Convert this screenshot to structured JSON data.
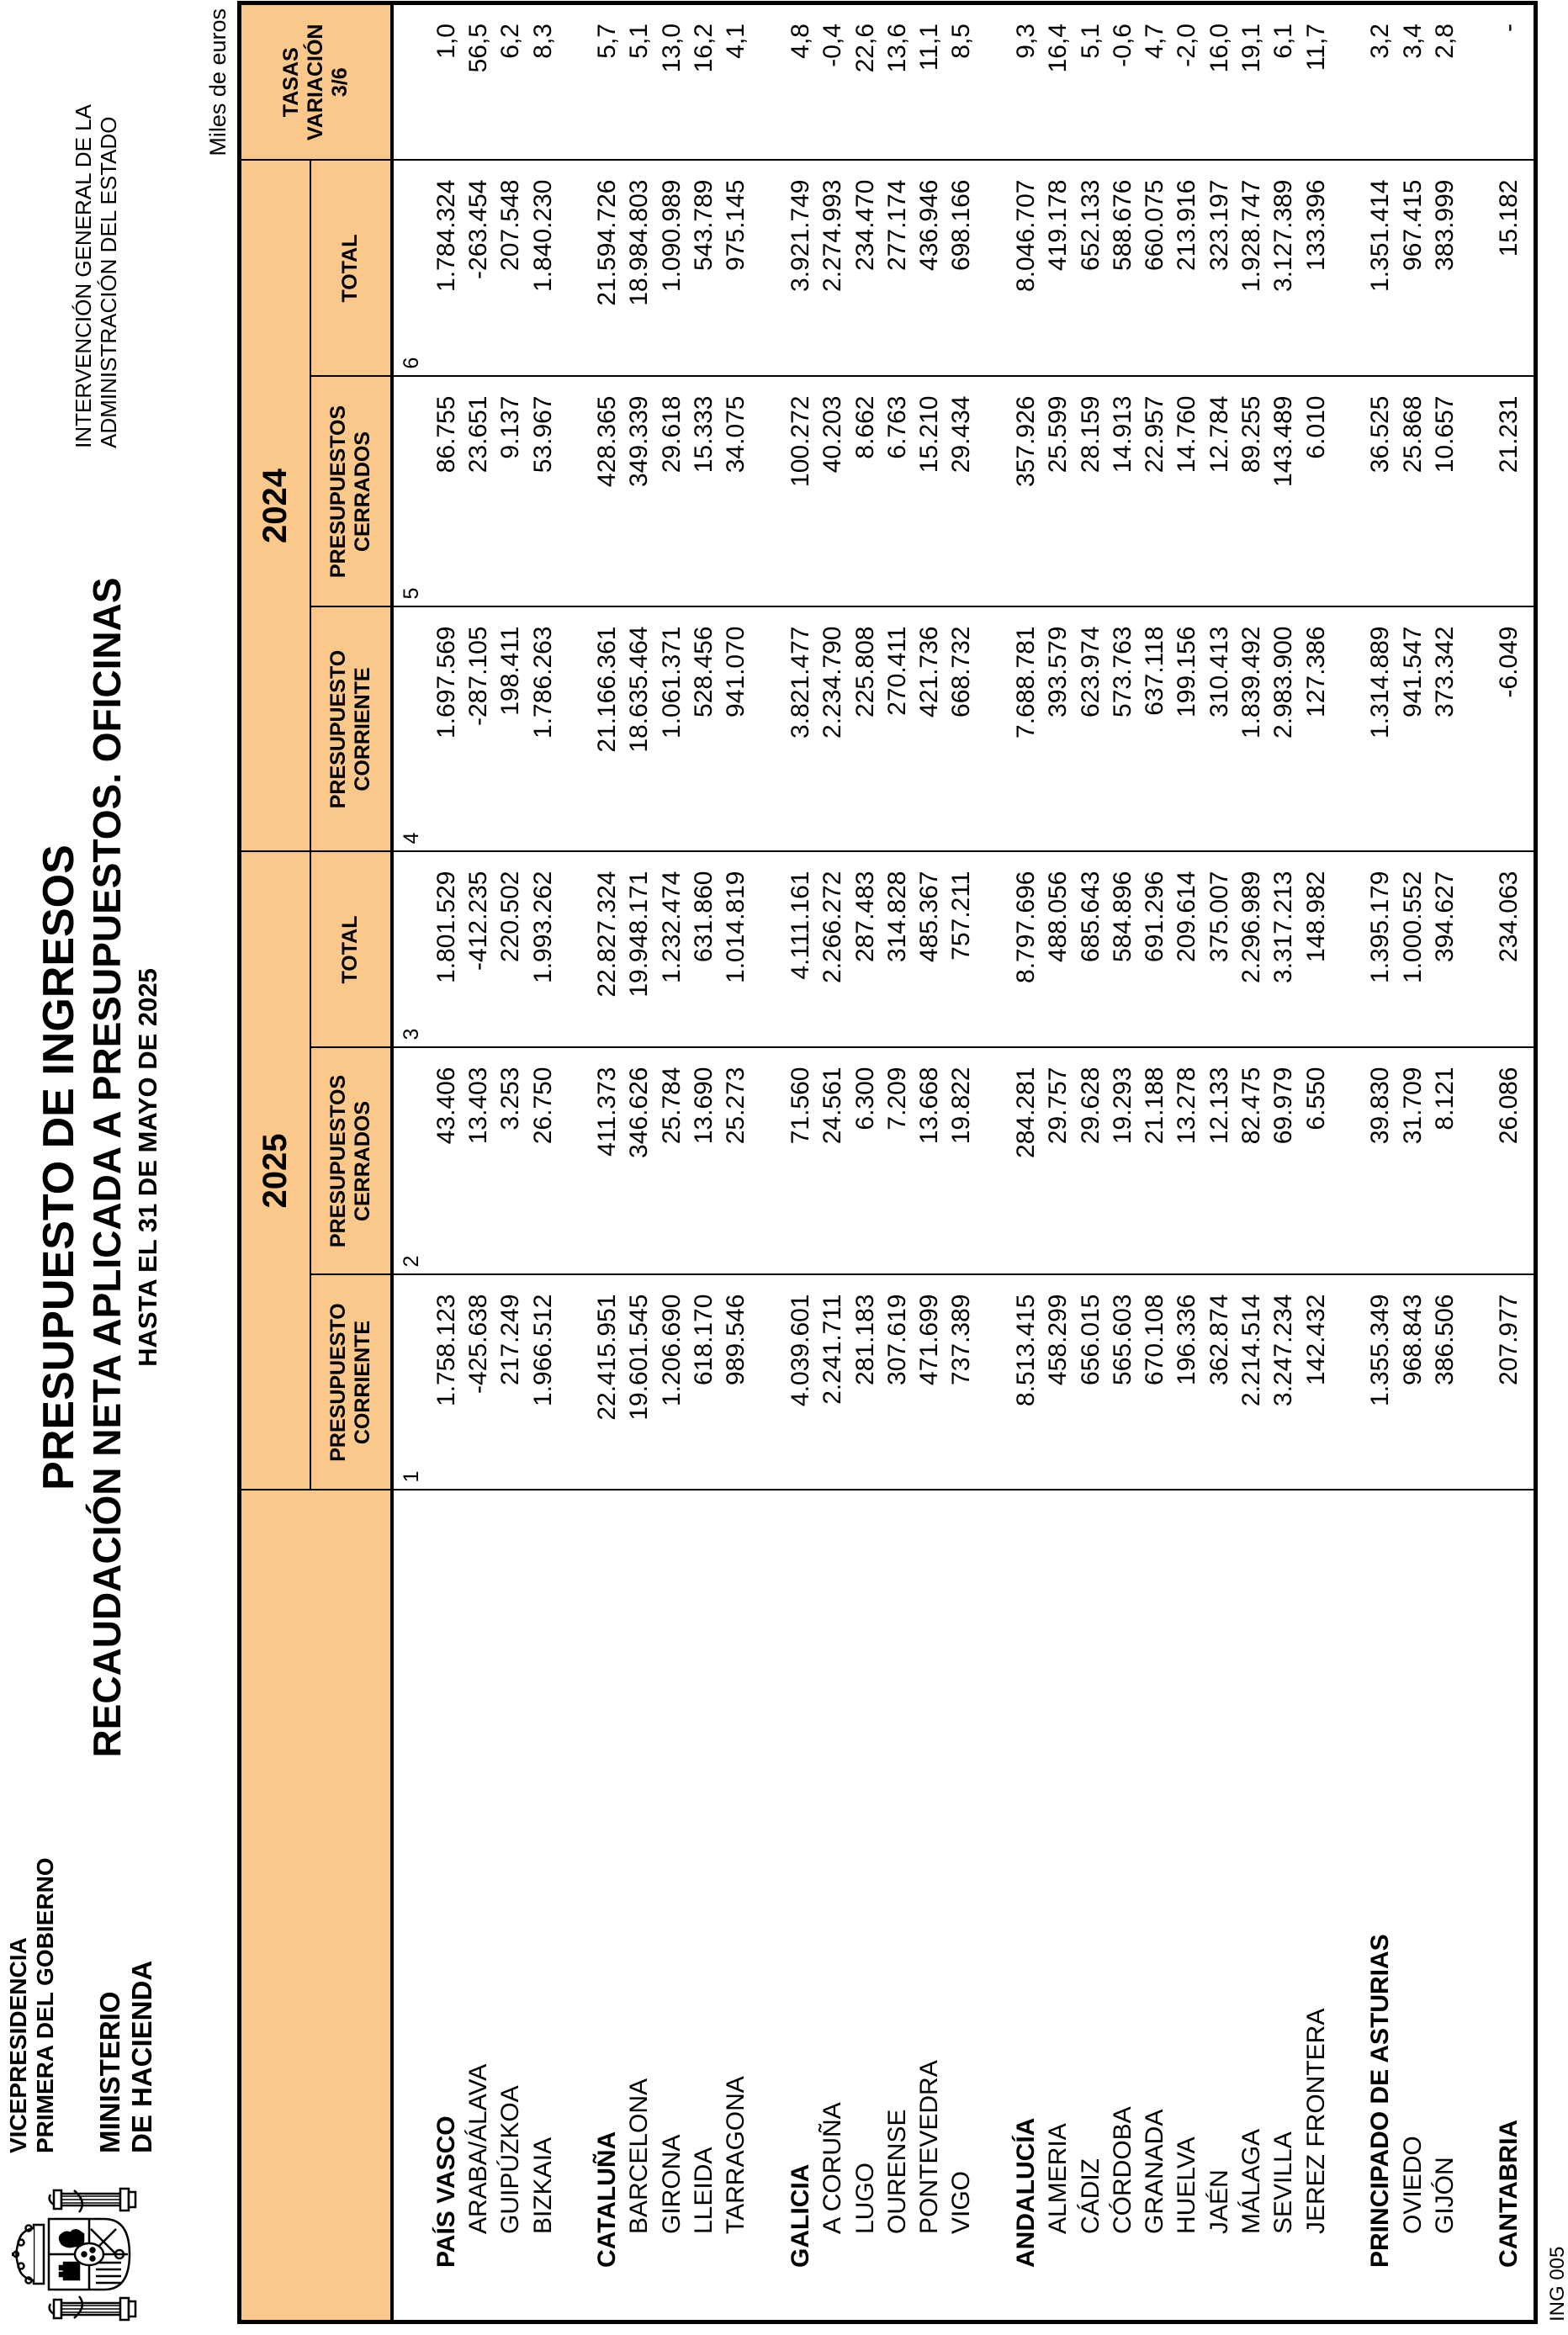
{
  "header": {
    "form_code": "ING 005",
    "department": {
      "line1": "VICEPRESIDENCIA",
      "line2": "PRIMERA DEL GOBIERNO",
      "line3": "MINISTERIO",
      "line4": "DE HACIENDA"
    },
    "emblem": "spanish-coat-of-arms",
    "title_line1": "PRESUPUESTO DE INGRESOS",
    "title_line2": "RECAUDACIÓN NETA APLICADA A PRESUPUESTOS. OFICINAS",
    "title_line3": "HASTA EL 31 DE MAYO DE 2025",
    "organization_line1": "INTERVENCIÓN GENERAL DE LA",
    "organization_line2": "ADMINISTRACIÓN DEL ESTADO",
    "units_note": "Miles de euros"
  },
  "colors": {
    "header_fill": "#FBC88C",
    "border": "#000000",
    "text": "#000000",
    "page_background": "#FFFFFF"
  },
  "table": {
    "years": {
      "y2025": "2025",
      "y2024": "2024"
    },
    "headers": {
      "corriente_l1": "PRESUPUESTO",
      "corriente_l2": "CORRIENTE",
      "cerrados_l1": "PRESUPUESTOS",
      "cerrados_l2": "CERRADOS",
      "total": "TOTAL",
      "tasas_l1": "TASAS",
      "tasas_l2": "VARIACIÓN",
      "tasas_l3": "3/6"
    },
    "column_numbers": [
      "1",
      "2",
      "3",
      "4",
      "5",
      "6"
    ],
    "rows": [
      {
        "type": "region",
        "label": "PAÍS VASCO",
        "values": [
          "1.758.123",
          "43.406",
          "1.801.529",
          "1.697.569",
          "86.755",
          "1.784.324",
          "1,0"
        ]
      },
      {
        "type": "office",
        "label": "ARABA/ÁLAVA",
        "values": [
          "-425.638",
          "13.403",
          "-412.235",
          "-287.105",
          "23.651",
          "-263.454",
          "56,5"
        ]
      },
      {
        "type": "office",
        "label": "GUIPÚZKOA",
        "values": [
          "217.249",
          "3.253",
          "220.502",
          "198.411",
          "9.137",
          "207.548",
          "6,2"
        ]
      },
      {
        "type": "office",
        "label": "BIZKAIA",
        "values": [
          "1.966.512",
          "26.750",
          "1.993.262",
          "1.786.263",
          "53.967",
          "1.840.230",
          "8,3"
        ]
      },
      {
        "type": "blank",
        "label": "",
        "values": [
          "",
          "",
          "",
          "",
          "",
          "",
          ""
        ]
      },
      {
        "type": "region",
        "label": "CATALUÑA",
        "values": [
          "22.415.951",
          "411.373",
          "22.827.324",
          "21.166.361",
          "428.365",
          "21.594.726",
          "5,7"
        ]
      },
      {
        "type": "office",
        "label": "BARCELONA",
        "values": [
          "19.601.545",
          "346.626",
          "19.948.171",
          "18.635.464",
          "349.339",
          "18.984.803",
          "5,1"
        ]
      },
      {
        "type": "office",
        "label": "GIRONA",
        "values": [
          "1.206.690",
          "25.784",
          "1.232.474",
          "1.061.371",
          "29.618",
          "1.090.989",
          "13,0"
        ]
      },
      {
        "type": "office",
        "label": "LLEIDA",
        "values": [
          "618.170",
          "13.690",
          "631.860",
          "528.456",
          "15.333",
          "543.789",
          "16,2"
        ]
      },
      {
        "type": "office",
        "label": "TARRAGONA",
        "values": [
          "989.546",
          "25.273",
          "1.014.819",
          "941.070",
          "34.075",
          "975.145",
          "4,1"
        ]
      },
      {
        "type": "blank",
        "label": "",
        "values": [
          "",
          "",
          "",
          "",
          "",
          "",
          ""
        ]
      },
      {
        "type": "region",
        "label": "GALICIA",
        "values": [
          "4.039.601",
          "71.560",
          "4.111.161",
          "3.821.477",
          "100.272",
          "3.921.749",
          "4,8"
        ]
      },
      {
        "type": "office",
        "label": "A CORUÑA",
        "values": [
          "2.241.711",
          "24.561",
          "2.266.272",
          "2.234.790",
          "40.203",
          "2.274.993",
          "-0,4"
        ]
      },
      {
        "type": "office",
        "label": "LUGO",
        "values": [
          "281.183",
          "6.300",
          "287.483",
          "225.808",
          "8.662",
          "234.470",
          "22,6"
        ]
      },
      {
        "type": "office",
        "label": "OURENSE",
        "values": [
          "307.619",
          "7.209",
          "314.828",
          "270.411",
          "6.763",
          "277.174",
          "13,6"
        ]
      },
      {
        "type": "office",
        "label": "PONTEVEDRA",
        "values": [
          "471.699",
          "13.668",
          "485.367",
          "421.736",
          "15.210",
          "436.946",
          "11,1"
        ]
      },
      {
        "type": "office",
        "label": "VIGO",
        "values": [
          "737.389",
          "19.822",
          "757.211",
          "668.732",
          "29.434",
          "698.166",
          "8,5"
        ]
      },
      {
        "type": "blank",
        "label": "",
        "values": [
          "",
          "",
          "",
          "",
          "",
          "",
          ""
        ]
      },
      {
        "type": "region",
        "label": "ANDALUCÍA",
        "values": [
          "8.513.415",
          "284.281",
          "8.797.696",
          "7.688.781",
          "357.926",
          "8.046.707",
          "9,3"
        ]
      },
      {
        "type": "office",
        "label": "ALMERIA",
        "values": [
          "458.299",
          "29.757",
          "488.056",
          "393.579",
          "25.599",
          "419.178",
          "16,4"
        ]
      },
      {
        "type": "office",
        "label": "CÁDIZ",
        "values": [
          "656.015",
          "29.628",
          "685.643",
          "623.974",
          "28.159",
          "652.133",
          "5,1"
        ]
      },
      {
        "type": "office",
        "label": "CÓRDOBA",
        "values": [
          "565.603",
          "19.293",
          "584.896",
          "573.763",
          "14.913",
          "588.676",
          "-0,6"
        ]
      },
      {
        "type": "office",
        "label": "GRANADA",
        "values": [
          "670.108",
          "21.188",
          "691.296",
          "637.118",
          "22.957",
          "660.075",
          "4,7"
        ]
      },
      {
        "type": "office",
        "label": "HUELVA",
        "values": [
          "196.336",
          "13.278",
          "209.614",
          "199.156",
          "14.760",
          "213.916",
          "-2,0"
        ]
      },
      {
        "type": "office",
        "label": "JAÉN",
        "values": [
          "362.874",
          "12.133",
          "375.007",
          "310.413",
          "12.784",
          "323.197",
          "16,0"
        ]
      },
      {
        "type": "office",
        "label": "MÁLAGA",
        "values": [
          "2.214.514",
          "82.475",
          "2.296.989",
          "1.839.492",
          "89.255",
          "1.928.747",
          "19,1"
        ]
      },
      {
        "type": "office",
        "label": "SEVILLA",
        "values": [
          "3.247.234",
          "69.979",
          "3.317.213",
          "2.983.900",
          "143.489",
          "3.127.389",
          "6,1"
        ]
      },
      {
        "type": "office",
        "label": "JEREZ FRONTERA",
        "values": [
          "142.432",
          "6.550",
          "148.982",
          "127.386",
          "6.010",
          "133.396",
          "11,7"
        ]
      },
      {
        "type": "blank",
        "label": "",
        "values": [
          "",
          "",
          "",
          "",
          "",
          "",
          ""
        ]
      },
      {
        "type": "region",
        "label": "PRINCIPADO DE ASTURIAS",
        "values": [
          "1.355.349",
          "39.830",
          "1.395.179",
          "1.314.889",
          "36.525",
          "1.351.414",
          "3,2"
        ]
      },
      {
        "type": "office",
        "label": "OVIEDO",
        "values": [
          "968.843",
          "31.709",
          "1.000.552",
          "941.547",
          "25.868",
          "967.415",
          "3,4"
        ]
      },
      {
        "type": "office",
        "label": "GIJÓN",
        "values": [
          "386.506",
          "8.121",
          "394.627",
          "373.342",
          "10.657",
          "383.999",
          "2,8"
        ]
      },
      {
        "type": "blank",
        "label": "",
        "values": [
          "",
          "",
          "",
          "",
          "",
          "",
          ""
        ]
      },
      {
        "type": "region",
        "label": "CANTABRIA",
        "values": [
          "207.977",
          "26.086",
          "234.063",
          "-6.049",
          "21.231",
          "15.182",
          "-"
        ]
      }
    ]
  }
}
